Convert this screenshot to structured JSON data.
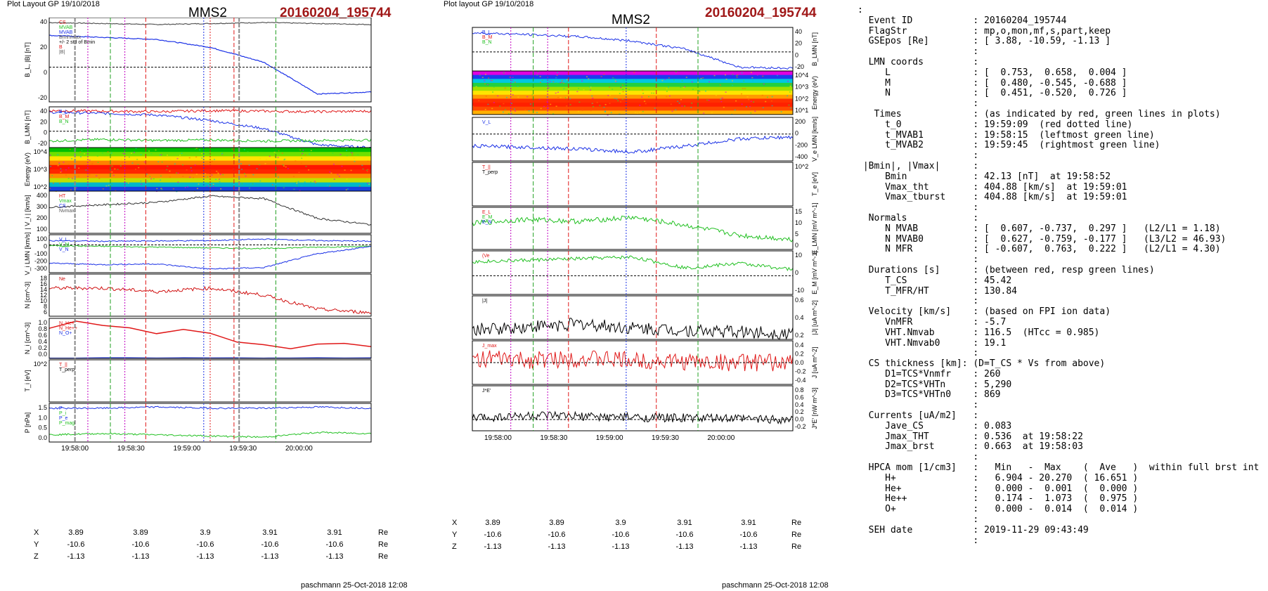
{
  "header_left": {
    "layout": "Plot Layout GP 19/10/2018",
    "spacecraft": "MMS2",
    "event": "20160204_195744"
  },
  "header_right": {
    "layout": "Plot layout GP 19/10/2018",
    "spacecraft": "MMS2",
    "event": "20160204_195744"
  },
  "footer_left": "paschmann 25-Oct-2018 12:08",
  "footer_right": "paschmann 25-Oct-2018 12:08",
  "time_ticks": [
    "19:58:00",
    "19:58:30",
    "19:59:00",
    "19:59:30",
    "20:00:00"
  ],
  "time_ticks_right": [
    "19:58:00",
    "19:58:30",
    "19:59:00",
    "19:59:30",
    "20:00:00"
  ],
  "orbit_rows": [
    {
      "name": "X",
      "values": [
        "3.89",
        "3.89",
        "3.9",
        "3.91",
        "3.91"
      ],
      "unit": "Re"
    },
    {
      "name": "Y",
      "values": [
        "-10.6",
        "-10.6",
        "-10.6",
        "-10.6",
        "-10.6"
      ],
      "unit": "Re"
    },
    {
      "name": "Z",
      "values": [
        "-1.13",
        "-1.13",
        "-1.13",
        "-1.13",
        "-1.13"
      ],
      "unit": "Re"
    }
  ],
  "chart_data": [
    {
      "type": "line",
      "ylabel": "B_L, |B| [nT]",
      "ylim": [
        -35,
        50
      ],
      "yticks": [
        "40",
        "20",
        "0",
        "-20"
      ],
      "legend": [
        "CS",
        "MVAB",
        "MVAB",
        "Bmin/max",
        "+/- 2 std of Bmin",
        "B",
        "|B|"
      ],
      "series": [
        {
          "name": "|B|",
          "values": [
            45,
            44,
            43,
            44,
            45,
            44,
            43
          ]
        },
        {
          "name": "B_L",
          "values": [
            32,
            30,
            28,
            20,
            5,
            -27,
            -25
          ]
        }
      ]
    },
    {
      "type": "line",
      "ylabel": "B_LMN [nT]",
      "ylim": [
        -30,
        45
      ],
      "yticks": [
        "40",
        "20",
        "0",
        "-20"
      ],
      "legend": [
        "B_L",
        "B_M",
        "B_N"
      ],
      "series": [
        {
          "name": "B_L",
          "values": [
            35,
            33,
            30,
            20,
            5,
            -25,
            -30
          ]
        },
        {
          "name": "B_M",
          "values": [
            38,
            37,
            36,
            38,
            37,
            36,
            37
          ]
        },
        {
          "name": "B_N",
          "values": [
            -18,
            -15,
            -17,
            -16,
            -18,
            -17,
            -16
          ]
        }
      ]
    },
    {
      "type": "heatmap",
      "ylabel": "Energy (eV)",
      "yticks": [
        "10^4",
        "10^3",
        "10^2"
      ]
    },
    {
      "type": "line",
      "ylabel": "| V_i | [km/s]",
      "ylim": [
        80,
        420
      ],
      "yticks": [
        "400",
        "300",
        "200",
        "100"
      ],
      "legend": [
        "HT",
        "Vmax",
        "CS",
        "Nvmax"
      ],
      "series": [
        {
          "name": "|Vi|",
          "values": [
            290,
            310,
            330,
            380,
            360,
            200,
            150
          ]
        }
      ]
    },
    {
      "type": "line",
      "ylabel": "V_i LMN [km/s]",
      "ylim": [
        -380,
        140
      ],
      "yticks": [
        "100",
        "0",
        "-100",
        "-200",
        "-300"
      ],
      "legend": [
        "V_L",
        "V_M",
        "V_N"
      ],
      "series": [
        {
          "name": "V_L",
          "values": [
            60,
            50,
            55,
            60,
            80,
            60,
            50
          ]
        },
        {
          "name": "V_M",
          "values": [
            -10,
            -20,
            -30,
            -40,
            -50,
            -30,
            -20
          ]
        },
        {
          "name": "V_N",
          "values": [
            -250,
            -270,
            -260,
            -330,
            -310,
            -120,
            -20
          ]
        }
      ]
    },
    {
      "type": "line",
      "ylabel": "N [cm^-3]",
      "ylim": [
        6,
        18
      ],
      "yticks": [
        "18",
        "16",
        "14",
        "12",
        "10",
        "8",
        "6"
      ],
      "legend": [
        "Ne"
      ],
      "series": [
        {
          "name": "Ne",
          "values": [
            14,
            14,
            13,
            14,
            12,
            8,
            7
          ]
        }
      ]
    },
    {
      "type": "line",
      "ylabel": "N_i [cm^-3]",
      "ylim": [
        0,
        1.0
      ],
      "yticks": [
        "1.0",
        "0.8",
        "0.6",
        "0.4",
        "0.2",
        "0.0"
      ],
      "legend": [
        "N_He+",
        "N_He++",
        "N_O+"
      ],
      "series": [
        {
          "name": "N_He++",
          "values": [
            0.75,
            0.95,
            0.8,
            0.75,
            0.55,
            0.85,
            0.4,
            0.42,
            0.2,
            0.35,
            0.38,
            0.3
          ]
        },
        {
          "name": "N_O+",
          "values": [
            0.01,
            0.01,
            0.01,
            0.01,
            0.01,
            0.01,
            0.01,
            0.01,
            0.01,
            0.01,
            0.01,
            0.01
          ]
        }
      ]
    },
    {
      "type": "line",
      "ylabel": "T_i [eV]",
      "yticks": [
        "10^2"
      ],
      "legend": [
        "T_||",
        "T_perp"
      ],
      "series": [
        {
          "name": "T_||",
          "values": [
            80,
            120,
            100,
            160,
            220,
            180,
            150
          ]
        },
        {
          "name": "T_perp",
          "values": [
            200,
            190,
            200,
            210,
            230,
            200,
            190
          ]
        }
      ]
    },
    {
      "type": "line",
      "ylabel": "P [nPa]",
      "ylim": [
        0,
        1.6
      ],
      "yticks": [
        "1.5",
        "1.0",
        "0.5",
        "0.0"
      ],
      "legend": [
        "P",
        "P_i",
        "P_e",
        "P_mag"
      ],
      "series": [
        {
          "name": "P",
          "values": [
            1.4,
            1.4,
            1.45,
            1.4,
            1.4,
            1.45,
            1.4
          ]
        },
        {
          "name": "P_mag",
          "values": [
            0.3,
            0.35,
            0.3,
            0.25,
            0.2,
            0.4,
            0.35
          ]
        }
      ]
    },
    {
      "type": "line",
      "ylabel": "B_LMN [nT]",
      "ylim": [
        -35,
        45
      ],
      "yticks": [
        "40",
        "20",
        "0",
        "-20"
      ],
      "legend": [
        "B_L",
        "B_M",
        "B_N"
      ],
      "series": [
        {
          "name": "B_L",
          "values": [
            35,
            32,
            28,
            20,
            5,
            -28,
            -30
          ]
        }
      ]
    },
    {
      "type": "heatmap",
      "ylabel": "Energy (eV)",
      "yticks": [
        "10^4",
        "10^3",
        "10^2",
        "10^1"
      ]
    },
    {
      "type": "line",
      "ylabel": "V_e LMN [km/s]",
      "ylim": [
        -450,
        280
      ],
      "yticks": [
        "200",
        "0",
        "-200",
        "-400"
      ],
      "legend": [
        "V_L"
      ],
      "series": [
        {
          "name": "V_L",
          "values": [
            -200,
            -220,
            -250,
            -300,
            -200,
            -80,
            -50
          ]
        }
      ]
    },
    {
      "type": "line",
      "ylabel": "T_e [eV]",
      "yticks": [
        "10^2"
      ],
      "legend": [
        "T_||",
        "T_perp"
      ],
      "series": [
        {
          "name": "T_||",
          "values": [
            50,
            120,
            140,
            160,
            170,
            180,
            185
          ]
        },
        {
          "name": "T_perp",
          "values": [
            40,
            60,
            90,
            100,
            110,
            120,
            125
          ]
        }
      ]
    },
    {
      "type": "line",
      "ylabel": "E_LMN [mV m^-1]",
      "ylim": [
        -3,
        18
      ],
      "yticks": [
        "15",
        "10",
        "5",
        "0"
      ],
      "legend": [
        "E_L",
        "E_M",
        "E_N"
      ],
      "series": [
        {
          "name": "E_M",
          "values": [
            10,
            12,
            11,
            13,
            9,
            4,
            2
          ]
        }
      ]
    },
    {
      "type": "line",
      "ylabel": "E_M [mV m^-1]",
      "ylim": [
        -12,
        16
      ],
      "yticks": [
        "10",
        "0",
        "-10"
      ],
      "legend": [
        "(Ve"
      ],
      "series": [
        {
          "name": "E_M",
          "values": [
            9,
            10,
            11,
            12,
            5,
            8,
            4
          ]
        }
      ]
    },
    {
      "type": "line",
      "ylabel": "|J| [uA m^-2]",
      "ylim": [
        0,
        0.7
      ],
      "yticks": [
        "0.6",
        "0.4",
        "0.2"
      ],
      "legend": [
        "|J|"
      ],
      "series": [
        {
          "name": "|J|",
          "values": [
            0.15,
            0.2,
            0.25,
            0.18,
            0.15,
            0.12,
            0.1
          ]
        }
      ]
    },
    {
      "type": "line",
      "ylabel": "J [uA m^-2]",
      "ylim": [
        -0.5,
        0.5
      ],
      "yticks": [
        "0.4",
        "0.2",
        "0.0",
        "-0.2",
        "-0.4"
      ],
      "legend": [
        "J_max"
      ],
      "series": [
        {
          "name": "J_L",
          "values": [
            0.1,
            0.05,
            0.1,
            0.05,
            0.02,
            0.0,
            0.0
          ]
        }
      ]
    },
    {
      "type": "line",
      "ylabel": "J*E' [nW m^-3]",
      "ylim": [
        -0.3,
        0.9
      ],
      "yticks": [
        "0.8",
        "0.6",
        "0.4",
        "0.2",
        "0.0",
        "-0.2"
      ],
      "legend": [
        "J*E'"
      ],
      "series": [
        {
          "name": "J*E'",
          "values": [
            0.05,
            0.1,
            0.08,
            0.06,
            0.04,
            0.02,
            0.01
          ]
        }
      ]
    }
  ],
  "info_panel": {
    "lines": [
      ":",
      "  Event ID           : 20160204_195744",
      "  FlagStr            : mp,o,mon,mf,s,part,keep",
      "  GSEpos [Re]        : [ 3.88, -10.59, -1.13 ]",
      "                     :",
      "  LMN coords         :",
      "     L               : [  0.753,  0.658,  0.004 ]",
      "     M               : [  0.480, -0.545, -0.688 ]",
      "     N               : [  0.451, -0.520,  0.726 ]",
      "                     :",
      "   Times             : (as indicated by red, green lines in plots)",
      "     t_0             : 19:59:09  (red dotted line)",
      "     t_MVAB1         : 19:58:15  (leftmost green line)",
      "     t_MVAB2         : 19:59:45  (rightmost green line)",
      "                     :",
      " |Bmin|, |Vmax|      :",
      "     Bmin            : 42.13 [nT]  at 19:58:52",
      "     Vmax_tht        : 404.88 [km/s]  at 19:59:01",
      "     Vmax_tburst     : 404.88 [km/s]  at 19:59:01",
      "                     :",
      "  Normals            :",
      "     N MVAB          : [  0.607, -0.737,  0.297 ]   (L2/L1 = 1.18)",
      "     N MVAB0         : [  0.627, -0.759, -0.177 ]   (L3/L2 = 46.93)",
      "     N MFR           : [ -0.607,  0.763,  0.222 ]   (L2/L1 = 4.30)",
      "                     :",
      "  Durations [s]      : (between red, resp green lines)",
      "     T_CS            : 45.42",
      "     T_MFR/HT        : 130.84",
      "                     :",
      "  Velocity [km/s]    : (based on FPI ion data)",
      "     VnMFR           : -5.7",
      "     VHT.Nmvab       : 116.5  (HTcc = 0.985)",
      "     VHT.Nmvab0      : 19.1",
      "                     :",
      "  CS thickness [km]: (D=T_CS * Vs from above)",
      "     D1=TCS*Vnmfr    : 260",
      "     D2=TCS*VHTn     : 5,290",
      "     D3=TCS*VHTn0    : 869",
      "                     :",
      "  Currents [uA/m2]   :",
      "     Jave_CS         : 0.083",
      "     Jmax_THT        : 0.536  at 19:58:22",
      "     Jmax_brst       : 0.663  at 19:58:03",
      "                     :",
      "  HPCA mom [1/cm3]   :   Min   -  Max    (  Ave   )  within full brst int",
      "     H+              :   6.904 - 20.270  ( 16.651 )",
      "     He+             :   0.000 -  0.001  (  0.000 )",
      "     He++            :   0.174 -  1.073  (  0.975 )",
      "     O+              :   0.000 -  0.014  (  0.014 )",
      "                     :",
      "  SEH date           : 2019-11-29 09:43:49",
      "                     :"
    ]
  }
}
